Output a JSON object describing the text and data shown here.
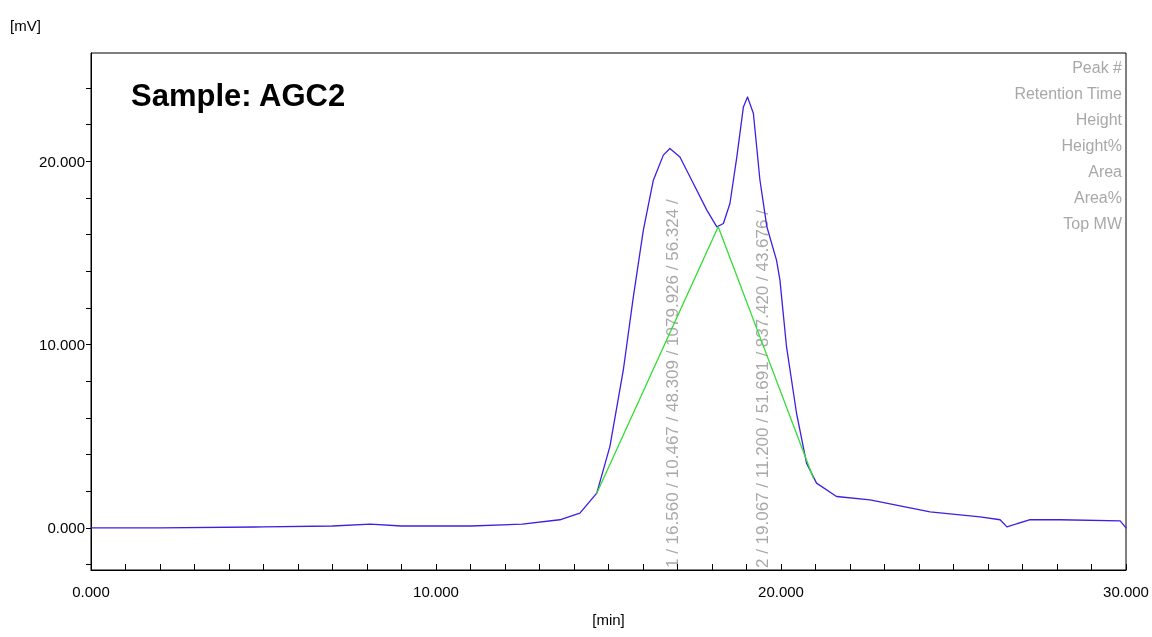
{
  "chart_data": {
    "type": "line",
    "title": "Sample: AGC2",
    "xlabel": "[min]",
    "ylabel": "[mV]",
    "series": [
      {
        "color": "#3f1fe0",
        "x": [
          0,
          2,
          5,
          7,
          8.1,
          9,
          11,
          12.5,
          13.59,
          14.17,
          14.66,
          15.04,
          15.43,
          15.72,
          16.01,
          16.3,
          16.59,
          16.78,
          17.07,
          17.46,
          17.85,
          18.14,
          18.33,
          18.52,
          18.72,
          18.91,
          19.03,
          19.2,
          19.39,
          19.59,
          19.87,
          19.97,
          20.16,
          20.45,
          20.74,
          21.03,
          21.61,
          22.58,
          24.32,
          25.77,
          26.35,
          26.55,
          27.2,
          28.09,
          29.83,
          30
        ],
        "values": [
          0,
          0,
          0.05,
          0.1,
          0.2,
          0.1,
          0.1,
          0.2,
          0.44,
          0.8,
          1.89,
          4.43,
          8.61,
          12.6,
          16.24,
          18.96,
          20.33,
          20.69,
          20.23,
          18.78,
          17.33,
          16.42,
          16.6,
          17.69,
          20.23,
          22.96,
          23.5,
          22.6,
          18.96,
          16.42,
          14.6,
          13.5,
          9.88,
          6.25,
          3.53,
          2.44,
          1.71,
          1.53,
          0.87,
          0.6,
          0.44,
          0.05,
          0.44,
          0.44,
          0.38,
          0
        ]
      },
      {
        "color": "#33dd33",
        "x": [
          14.66,
          18.18,
          20.94
        ],
        "values": [
          1.89,
          16.42,
          2.7
        ]
      }
    ],
    "xlim": [
      0,
      30
    ],
    "xticks": [
      {
        "value": 0,
        "label": "0.000"
      },
      {
        "value": 1,
        "label": null
      },
      {
        "value": 2,
        "label": null
      },
      {
        "value": 3,
        "label": null
      },
      {
        "value": 4,
        "label": null
      },
      {
        "value": 5,
        "label": null
      },
      {
        "value": 6,
        "label": null
      },
      {
        "value": 7,
        "label": null
      },
      {
        "value": 8,
        "label": null
      },
      {
        "value": 9,
        "label": null
      },
      {
        "value": 10,
        "label": "10.000"
      },
      {
        "value": 11,
        "label": null
      },
      {
        "value": 12,
        "label": null
      },
      {
        "value": 13,
        "label": null
      },
      {
        "value": 14,
        "label": null
      },
      {
        "value": 15,
        "label": null
      },
      {
        "value": 16,
        "label": null
      },
      {
        "value": 17,
        "label": null
      },
      {
        "value": 18,
        "label": null
      },
      {
        "value": 19,
        "label": null
      },
      {
        "value": 20,
        "label": "20.000"
      },
      {
        "value": 21,
        "label": null
      },
      {
        "value": 22,
        "label": null
      },
      {
        "value": 23,
        "label": null
      },
      {
        "value": 24,
        "label": null
      },
      {
        "value": 25,
        "label": null
      },
      {
        "value": 26,
        "label": null
      },
      {
        "value": 27,
        "label": null
      },
      {
        "value": 28,
        "label": null
      },
      {
        "value": 29,
        "label": null
      },
      {
        "value": 30,
        "label": "30.000"
      }
    ],
    "ylim": [
      -2.3,
      25.9
    ],
    "yticks": [
      {
        "value": -2,
        "label": null
      },
      {
        "value": 0,
        "label": "0.000"
      },
      {
        "value": 2,
        "label": null
      },
      {
        "value": 4,
        "label": null
      },
      {
        "value": 6,
        "label": null
      },
      {
        "value": 8,
        "label": null
      },
      {
        "value": 10,
        "label": "10.000"
      },
      {
        "value": 12,
        "label": null
      },
      {
        "value": 14,
        "label": null
      },
      {
        "value": 16,
        "label": null
      },
      {
        "value": 18,
        "label": null
      },
      {
        "value": 20,
        "label": "20.000"
      },
      {
        "value": 22,
        "label": null
      },
      {
        "value": 24,
        "label": null
      }
    ],
    "annotations": [
      "1 / 16.560 / 10.467 / 48.309 / 1079.926 / 56.324 /",
      "2 / 19.067 / 11.200 / 51.691 / 837.420 / 43.676 /",
      "Peak #",
      "Retention Time",
      "Height",
      "Height%",
      "Area",
      "Area%",
      "Top MW"
    ],
    "grid": false,
    "marker": "none",
    "line_style": "solid"
  }
}
